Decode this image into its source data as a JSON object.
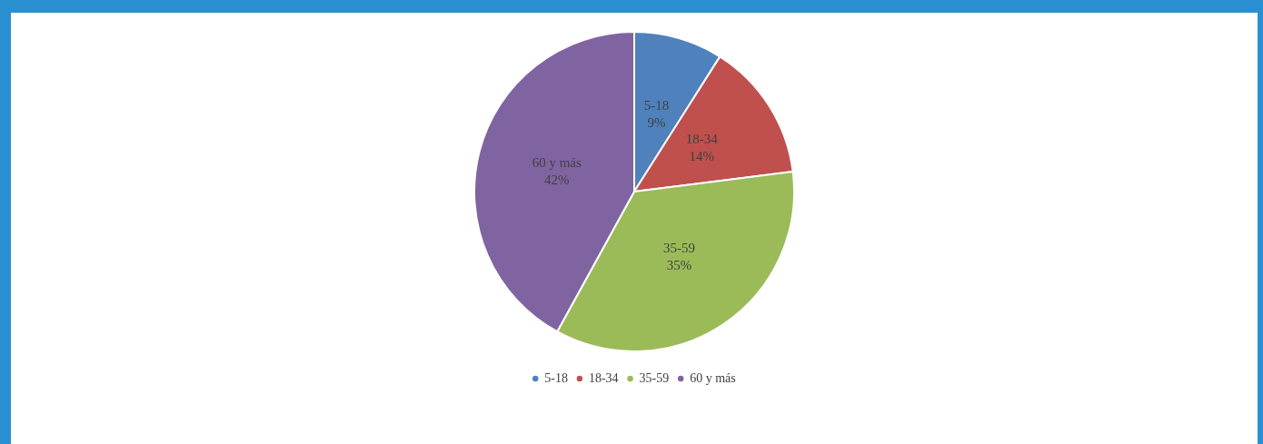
{
  "chart_data": {
    "type": "pie",
    "categories": [
      "5-18",
      "18-34",
      "35-59",
      "60 y más"
    ],
    "values": [
      9,
      14,
      35,
      42
    ],
    "colors": [
      "#4f81bd",
      "#c0504d",
      "#9bbb59",
      "#8064a2"
    ],
    "value_labels": [
      "9%",
      "14%",
      "35%",
      "42%"
    ],
    "legend": "bottom"
  }
}
